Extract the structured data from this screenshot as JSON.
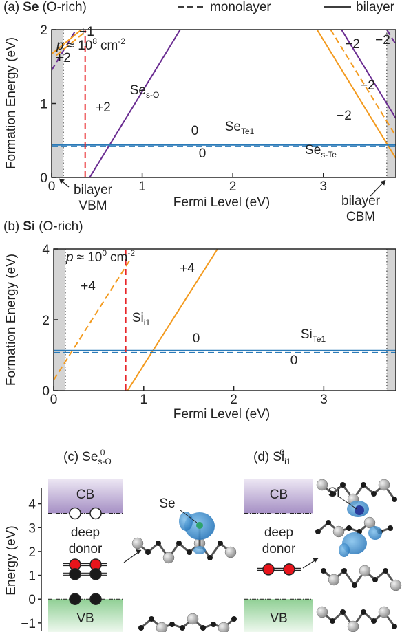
{
  "chart_data": [
    {
      "type": "line",
      "title_parts": [
        {
          "text": "(a)"
        },
        {
          "text": "Se",
          "bold": true
        },
        {
          "text": "(O-rich)"
        }
      ],
      "legend": [
        {
          "label": "monolayer",
          "dash": true
        },
        {
          "label": "bilayer",
          "dash": false
        }
      ],
      "xlabel": "Fermi Level (eV)",
      "ylabel": "Formation Energy (eV)",
      "xlim": [
        0,
        3.8
      ],
      "ylim": [
        0,
        2
      ],
      "xticks": [
        0,
        1,
        2,
        3
      ],
      "yticks": [
        0,
        1,
        2
      ],
      "vbm": 0.13,
      "cbm": 3.7,
      "series": [
        {
          "color": "#6a2c91",
          "dash": false,
          "x": [
            0.42,
            1.42
          ],
          "values": [
            0,
            2
          ]
        },
        {
          "color": "#6a2c91",
          "dash": true,
          "x": [
            0,
            0.27
          ],
          "values": [
            1.45,
            2
          ]
        },
        {
          "color": "#6a2c91",
          "dash": false,
          "x": [
            3.2,
            3.8
          ],
          "values": [
            2,
            0.8
          ]
        },
        {
          "color": "#6a2c91",
          "dash": true,
          "x": [
            3.7,
            3.8
          ],
          "values": [
            2,
            1.8
          ]
        },
        {
          "color": "#f39a1e",
          "dash": false,
          "x": [
            0,
            0.33
          ],
          "values": [
            1.67,
            2
          ]
        },
        {
          "color": "#f39a1e",
          "dash": true,
          "x": [
            0.05,
            0.35
          ],
          "values": [
            1.65,
            1.95
          ]
        },
        {
          "color": "#f39a1e",
          "dash": false,
          "x": [
            2.93,
            3.8
          ],
          "values": [
            2,
            0.26
          ]
        },
        {
          "color": "#f39a1e",
          "dash": true,
          "x": [
            3.08,
            3.8
          ],
          "values": [
            2,
            0.56
          ]
        },
        {
          "color": "#2a7ab8",
          "dash": false,
          "x": [
            0,
            3.8
          ],
          "values": [
            0.44,
            0.44
          ]
        },
        {
          "color": "#2a7ab8",
          "dash": true,
          "x": [
            0,
            3.8
          ],
          "values": [
            0.42,
            0.42
          ]
        },
        {
          "color": "#e8262a",
          "dash": true,
          "x": [
            0.37,
            0.37
          ],
          "values": [
            0,
            2
          ]
        }
      ],
      "annotations": [
        {
          "color": "#f39a1e",
          "parts": [
            {
              "text": "+1"
            }
          ]
        },
        {
          "color": "#6a2c91",
          "parts": [
            {
              "text": "+2"
            }
          ]
        },
        {
          "color": "#e8262a",
          "parts": [
            {
              "text": "p",
              "italic": true
            },
            {
              "text": "≈ 10"
            },
            {
              "text": "8",
              "sup": true
            },
            {
              "text": "cm"
            },
            {
              "text": "-2",
              "sup": true
            }
          ]
        },
        {
          "color": "#6a2c91",
          "parts": [
            {
              "text": "Se"
            },
            {
              "text": "s-O",
              "sub": true
            }
          ]
        },
        {
          "color": "#6a2c91",
          "parts": [
            {
              "text": "+2"
            }
          ]
        },
        {
          "color": "#2a7ab8",
          "parts": [
            {
              "text": "0"
            }
          ]
        },
        {
          "color": "#2a7ab8",
          "parts": [
            {
              "text": "Se"
            },
            {
              "text": "Te1",
              "sub": true
            }
          ]
        },
        {
          "color": "#2a7ab8",
          "parts": [
            {
              "text": "0"
            }
          ]
        },
        {
          "color": "#f39a1e",
          "parts": [
            {
              "text": "−2"
            }
          ]
        },
        {
          "color": "#6a2c91",
          "parts": [
            {
              "text": "−2"
            }
          ]
        },
        {
          "color": "#6a2c91",
          "parts": [
            {
              "text": "−2"
            }
          ]
        },
        {
          "color": "#f39a1e",
          "parts": [
            {
              "text": "−2"
            }
          ]
        },
        {
          "color": "#f39a1e",
          "parts": [
            {
              "text": "Se"
            },
            {
              "text": "s-Te",
              "sub": true
            }
          ]
        }
      ],
      "edge_labels": [
        [
          "bilayer",
          "VBM"
        ],
        [
          "bilayer",
          "CBM"
        ]
      ]
    },
    {
      "type": "line",
      "title_parts": [
        {
          "text": "(b)"
        },
        {
          "text": "Si",
          "bold": true
        },
        {
          "text": "(O-rich)"
        }
      ],
      "xlabel": "Fermi Level (eV)",
      "ylabel": "Formation Energy (eV)",
      "xlim": [
        0,
        3.8
      ],
      "ylim": [
        0,
        4
      ],
      "xticks": [
        0,
        1,
        2,
        3
      ],
      "yticks": [
        0,
        2,
        4
      ],
      "vbm": 0.13,
      "cbm": 3.7,
      "series": [
        {
          "color": "#f39a1e",
          "dash": false,
          "x": [
            0.82,
            1.82
          ],
          "values": [
            0,
            4
          ]
        },
        {
          "color": "#f39a1e",
          "dash": true,
          "x": [
            0,
            0.85
          ],
          "values": [
            0.3,
            3.7
          ]
        },
        {
          "color": "#2a7ab8",
          "dash": false,
          "x": [
            0,
            3.8
          ],
          "values": [
            1.13,
            1.13
          ]
        },
        {
          "color": "#2a7ab8",
          "dash": true,
          "x": [
            0,
            3.8
          ],
          "values": [
            1.07,
            1.07
          ]
        },
        {
          "color": "#e8262a",
          "dash": true,
          "x": [
            0.8,
            0.8
          ],
          "values": [
            0,
            4
          ]
        }
      ],
      "annotations": [
        {
          "color": "#e8262a",
          "parts": [
            {
              "text": "p",
              "italic": true
            },
            {
              "text": "≈ 10"
            },
            {
              "text": "0",
              "sup": true
            },
            {
              "text": "cm"
            },
            {
              "text": "-2",
              "sup": true
            }
          ]
        },
        {
          "color": "#f39a1e",
          "parts": [
            {
              "text": "+4"
            }
          ]
        },
        {
          "color": "#f39a1e",
          "parts": [
            {
              "text": "Si"
            },
            {
              "text": "i1",
              "sub": true
            }
          ]
        },
        {
          "color": "#f39a1e",
          "parts": [
            {
              "text": "+4"
            }
          ]
        },
        {
          "color": "#2a7ab8",
          "parts": [
            {
              "text": "0"
            }
          ]
        },
        {
          "color": "#2a7ab8",
          "parts": [
            {
              "text": "Si"
            },
            {
              "text": "Te1",
              "sub": true
            }
          ]
        },
        {
          "color": "#2a7ab8",
          "parts": [
            {
              "text": "0"
            }
          ]
        }
      ]
    },
    {
      "type": "level",
      "ylabel": "Energy (eV)",
      "ylim": [
        -1.35,
        4.45
      ],
      "yticks": [
        {
          "value": -1,
          "label": "−1"
        },
        0,
        1,
        2,
        3,
        4
      ],
      "cb": 3.6,
      "vb": 0,
      "panels": [
        {
          "title_parts": [
            {
              "text": "(c)"
            },
            {
              "text": "Se"
            },
            {
              "text": "s-O",
              "sub": true
            },
            {
              "text": "0",
              "sup": true
            }
          ],
          "cb_label": "CB",
          "vb_label": "VB",
          "defect": [
            "deep",
            "donor"
          ],
          "atom": "Se",
          "levels": [
            {
              "energy": 3.6,
              "fill": "#ffffff"
            },
            {
              "energy": 1.45,
              "fill": "#e8141b"
            },
            {
              "energy": 1.05,
              "fill": "#1a1a1a"
            },
            {
              "energy": 0,
              "fill": "#1a1a1a"
            }
          ]
        },
        {
          "title_parts": [
            {
              "text": "(d)"
            },
            {
              "text": "Si"
            },
            {
              "text": "i1",
              "sub": true
            },
            {
              "text": "0",
              "sup": true
            }
          ],
          "cb_label": "CB",
          "vb_label": "VB",
          "defect": [
            "deep",
            "donor"
          ],
          "atom": "Si",
          "levels": [
            {
              "energy": 1.25,
              "fill": "#e8141b"
            }
          ]
        }
      ]
    }
  ]
}
